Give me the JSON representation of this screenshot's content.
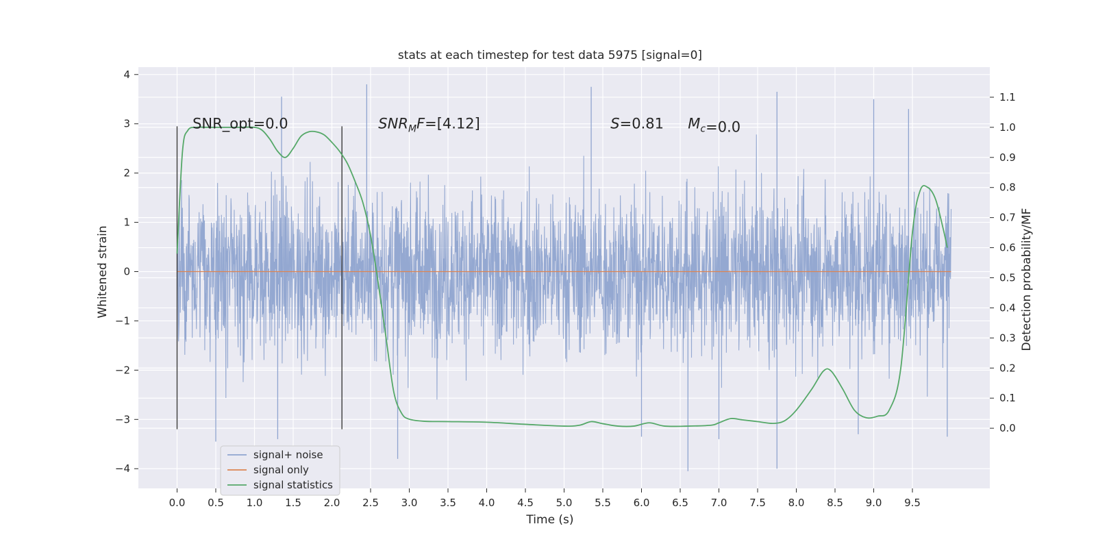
{
  "chart_data": {
    "type": "line",
    "title": "stats at each timestep for test data 5975 [signal=0]",
    "xlabel": "Time (s)",
    "ylabel": "Whitened strain",
    "y2label": "Detection probability/MF",
    "xlim": [
      -0.5,
      10.5
    ],
    "ylim": [
      -4.4,
      4.15
    ],
    "y2lim": [
      -0.2,
      1.2
    ],
    "x_ticks": [
      0.0,
      0.5,
      1.0,
      1.5,
      2.0,
      2.5,
      3.0,
      3.5,
      4.0,
      4.5,
      5.0,
      5.5,
      6.0,
      6.5,
      7.0,
      7.5,
      8.0,
      8.5,
      9.0,
      9.5
    ],
    "x_tick_labels": [
      "0.0",
      "0.5",
      "1.0",
      "1.5",
      "2.0",
      "2.5",
      "3.0",
      "3.5",
      "4.0",
      "4.5",
      "5.0",
      "5.5",
      "6.0",
      "6.5",
      "7.0",
      "7.5",
      "8.0",
      "8.5",
      "9.0",
      "9.5"
    ],
    "y_ticks": [
      -4,
      -3,
      -2,
      -1,
      0,
      1,
      2,
      3,
      4
    ],
    "y_tick_labels": [
      "−4",
      "−3",
      "−2",
      "−1",
      "0",
      "1",
      "2",
      "3",
      "4"
    ],
    "y2_ticks": [
      0.0,
      0.1,
      0.2,
      0.3,
      0.4,
      0.5,
      0.6,
      0.7,
      0.8,
      0.9,
      1.0,
      1.1
    ],
    "y2_tick_labels": [
      "0.0",
      "0.1",
      "0.2",
      "0.3",
      "0.4",
      "0.5",
      "0.6",
      "0.7",
      "0.8",
      "0.9",
      "1.0",
      "1.1"
    ],
    "grid": true,
    "legend_location": "lower-left",
    "series": [
      {
        "name": "signal+ noise",
        "color": "#8fa4cf",
        "axis": "left",
        "kind": "noise",
        "x_range": [
          0.0,
          10.0
        ],
        "envelope_typical": [
          -1.7,
          1.7
        ],
        "extremes": [
          -4.05,
          3.8
        ],
        "spikes": [
          {
            "x": 1.35,
            "y": 3.55
          },
          {
            "x": 2.45,
            "y": 3.8
          },
          {
            "x": 5.35,
            "y": 3.75
          },
          {
            "x": 7.75,
            "y": 3.65
          },
          {
            "x": 9.0,
            "y": 3.5
          },
          {
            "x": 9.45,
            "y": 3.3
          },
          {
            "x": 2.85,
            "y": -3.8
          },
          {
            "x": 6.6,
            "y": -4.05
          },
          {
            "x": 7.75,
            "y": -4.0
          },
          {
            "x": 0.5,
            "y": -3.45
          },
          {
            "x": 1.3,
            "y": -3.4
          },
          {
            "x": 6.0,
            "y": -3.35
          },
          {
            "x": 9.95,
            "y": -3.35
          },
          {
            "x": 8.8,
            "y": -3.3
          },
          {
            "x": 7.0,
            "y": -3.4
          }
        ]
      },
      {
        "name": "signal only",
        "color": "#dd8452",
        "axis": "left",
        "x": [
          0.0,
          10.0
        ],
        "y": [
          0.0,
          0.0
        ]
      },
      {
        "name": "signal statistics",
        "color": "#55a868",
        "axis": "right",
        "x": [
          0.0,
          0.07,
          0.14,
          0.25,
          0.4,
          0.6,
          0.8,
          1.0,
          1.1,
          1.2,
          1.3,
          1.4,
          1.5,
          1.6,
          1.7,
          1.8,
          1.9,
          2.0,
          2.1,
          2.2,
          2.3,
          2.4,
          2.5,
          2.6,
          2.7,
          2.8,
          2.9,
          3.0,
          3.2,
          3.5,
          4.0,
          4.5,
          5.0,
          5.2,
          5.35,
          5.5,
          5.7,
          5.9,
          6.1,
          6.3,
          6.6,
          6.9,
          7.0,
          7.15,
          7.3,
          7.5,
          7.7,
          7.85,
          8.0,
          8.2,
          8.35,
          8.45,
          8.6,
          8.75,
          8.9,
          9.05,
          9.2,
          9.35,
          9.5,
          9.6,
          9.7,
          9.8,
          9.9,
          9.95
        ],
        "y": [
          0.58,
          0.92,
          0.99,
          1.0,
          1.0,
          1.0,
          1.0,
          1.0,
          0.99,
          0.96,
          0.92,
          0.9,
          0.93,
          0.97,
          0.985,
          0.985,
          0.975,
          0.95,
          0.92,
          0.88,
          0.82,
          0.75,
          0.64,
          0.48,
          0.3,
          0.12,
          0.05,
          0.03,
          0.023,
          0.022,
          0.02,
          0.013,
          0.007,
          0.01,
          0.022,
          0.015,
          0.007,
          0.007,
          0.018,
          0.007,
          0.007,
          0.01,
          0.018,
          0.032,
          0.028,
          0.022,
          0.016,
          0.025,
          0.06,
          0.13,
          0.19,
          0.19,
          0.13,
          0.06,
          0.035,
          0.04,
          0.06,
          0.2,
          0.65,
          0.79,
          0.8,
          0.76,
          0.66,
          0.6
        ]
      }
    ],
    "vlines": [
      {
        "x": 0.0,
        "y_range": [
          -3.2,
          2.95
        ],
        "color": "#3a3a3a"
      },
      {
        "x": 2.13,
        "y_range": [
          -3.2,
          2.95
        ],
        "color": "#3a3a3a"
      }
    ],
    "annotations": [
      {
        "label": "SNR_opt=0.0",
        "x": 0.2,
        "y": 3.0
      },
      {
        "label": "SNRₘF=[4.12]",
        "x": 2.6,
        "y": 3.0,
        "parts": {
          "base": "SNR",
          "sub": "M",
          "rest": "F",
          "value": "=[4.12]"
        }
      },
      {
        "label": "S=0.81",
        "x": 5.6,
        "y": 3.0,
        "parts": {
          "base": "S",
          "value": "=0.81"
        }
      },
      {
        "label": "M_c=0.0",
        "x": 6.6,
        "y": 3.0,
        "parts": {
          "base": "M",
          "sub": "c",
          "value": "=0.0"
        }
      }
    ],
    "legend": [
      {
        "label": "signal+ noise",
        "color": "#8fa4cf"
      },
      {
        "label": "signal only",
        "color": "#dd8452"
      },
      {
        "label": "signal statistics",
        "color": "#55a868"
      }
    ]
  }
}
